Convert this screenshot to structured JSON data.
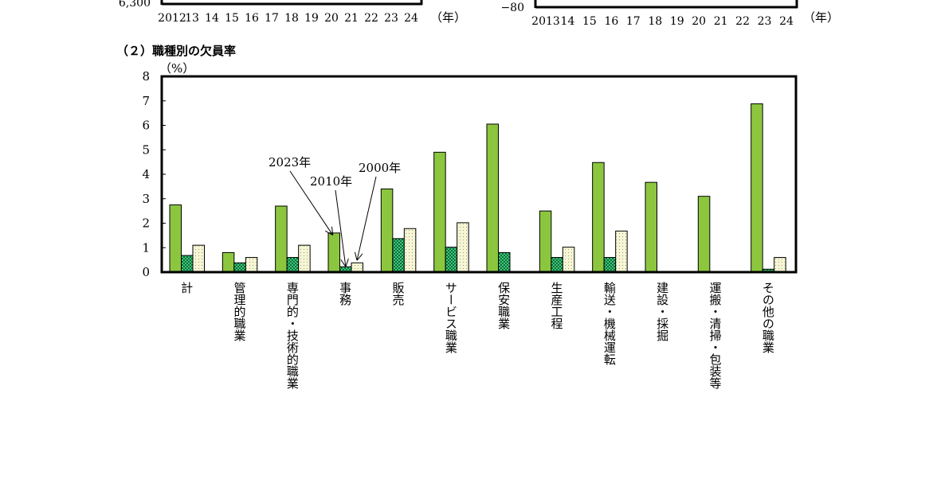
{
  "top_left_partial": {
    "y_tick_label": "6,300",
    "x_tick_labels": [
      "2012",
      "13",
      "14",
      "15",
      "16",
      "17",
      "18",
      "19",
      "20",
      "21",
      "22",
      "23",
      "24"
    ],
    "unit_label": "（年）"
  },
  "top_right_partial": {
    "y_tick_label": "−80",
    "x_tick_labels": [
      "2013",
      "14",
      "15",
      "16",
      "17",
      "18",
      "19",
      "20",
      "21",
      "22",
      "23",
      "24"
    ],
    "unit_label": "（年）"
  },
  "section_title": "（２）職種別の欠員率",
  "colors": {
    "series_2023": "#8cc63f",
    "series_2010": "#3ec87a",
    "series_2000": "#f6f6d6",
    "axis": "#000000"
  },
  "chart_data": {
    "type": "bar",
    "title": "（２）職種別の欠員率",
    "ylabel": "（%）",
    "xlabel": "",
    "ylim": [
      0,
      8
    ],
    "yticks": [
      0,
      1,
      2,
      3,
      4,
      5,
      6,
      7,
      8
    ],
    "grid": false,
    "categories": [
      "計",
      "管理的職業",
      "専門的・技術的職業",
      "事務",
      "販売",
      "サービス職業",
      "保安職業",
      "生産工程",
      "輸送・機械運転",
      "建設・採掘",
      "運搬・清掃・包装等",
      "その他の職業"
    ],
    "series": [
      {
        "name": "2023年",
        "values": [
          2.75,
          0.8,
          2.7,
          1.6,
          3.4,
          4.9,
          6.05,
          2.5,
          4.48,
          3.67,
          3.1,
          6.88
        ]
      },
      {
        "name": "2010年",
        "values": [
          0.68,
          0.38,
          0.6,
          0.22,
          1.37,
          1.02,
          0.8,
          0.6,
          0.6,
          0,
          0,
          0.12
        ]
      },
      {
        "name": "2000年",
        "values": [
          1.1,
          0.6,
          1.1,
          0.38,
          1.78,
          2.02,
          null,
          1.02,
          1.68,
          null,
          null,
          0.6
        ]
      }
    ],
    "annotations": [
      "2023年",
      "2010年",
      "2000年"
    ]
  }
}
